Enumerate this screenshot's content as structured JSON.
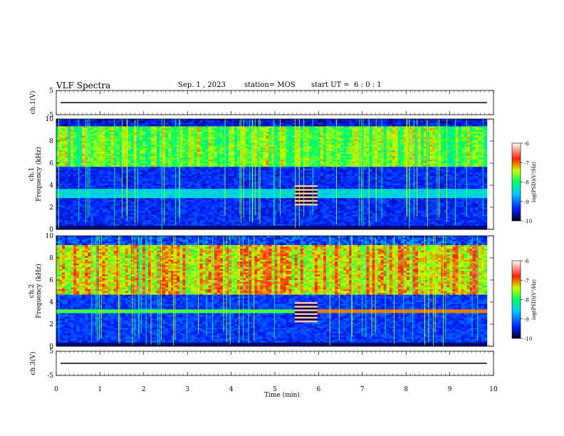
{
  "header": {
    "title": "VLF Spectra",
    "date": "Sep. 1 , 2023",
    "station": "station= MOS",
    "start": "start UT =  6 : 0 : 1"
  },
  "chart_data": [
    {
      "type": "line",
      "panel": "ch1-waveform",
      "ylabel": "ch.1(V)",
      "ylim": [
        -5,
        5
      ],
      "yticks": [
        "5",
        "-5"
      ],
      "series": [
        {
          "x": [
            0,
            9.85
          ],
          "y": [
            0,
            0
          ]
        }
      ]
    },
    {
      "type": "heatmap",
      "panel": "ch1-spectrogram",
      "ylabel": "ch.1\nFrequency (kHz)",
      "ylim": [
        0,
        10
      ],
      "yticks": [
        "0",
        "2",
        "4",
        "6",
        "8",
        "10"
      ],
      "xlim": [
        0,
        9.85
      ],
      "description_bands": [
        {
          "f_low": 0.2,
          "f_high": 4.0,
          "level": "background"
        },
        {
          "f_low": 2.8,
          "f_high": 3.6,
          "level": "cyan-band"
        },
        {
          "f_low": 5.8,
          "f_high": 9.2,
          "level": "green-yellow emission"
        }
      ],
      "colorbar": {
        "label": "log(PSD)(V²/Hz)",
        "ticks": [
          "-6",
          "-7",
          "-8",
          "-9",
          "-10"
        ],
        "range": [
          -10,
          -6
        ]
      }
    },
    {
      "type": "heatmap",
      "panel": "ch2-spectrogram",
      "ylabel": "ch.2\nFrequency (kHz)",
      "ylim": [
        0,
        10
      ],
      "yticks": [
        "0",
        "2",
        "4",
        "6",
        "8",
        "10"
      ],
      "xlim": [
        0,
        9.85
      ],
      "description_bands": [
        {
          "f_low": 3.0,
          "f_high": 3.3,
          "level": "orange line"
        },
        {
          "f_low": 5.0,
          "f_high": 9.0,
          "level": "red-yellow emission"
        }
      ],
      "colorbar": {
        "label": "log(PSD)(V²/Hz)",
        "ticks": [
          "-6",
          "-7",
          "-8",
          "-9",
          "-10"
        ],
        "range": [
          -10,
          -6
        ]
      }
    },
    {
      "type": "line",
      "panel": "ch3-waveform",
      "ylabel": "ch.3(V)",
      "ylim": [
        -5,
        5
      ],
      "yticks": [
        "5",
        "-5"
      ],
      "series": [
        {
          "x": [
            0,
            9.85
          ],
          "y": [
            0,
            0
          ]
        }
      ]
    }
  ],
  "xaxis": {
    "label": "Time (min)",
    "xlim": [
      0,
      10
    ],
    "ticks": [
      "0",
      "1",
      "2",
      "3",
      "4",
      "5",
      "6",
      "7",
      "8",
      "9",
      "10"
    ]
  }
}
